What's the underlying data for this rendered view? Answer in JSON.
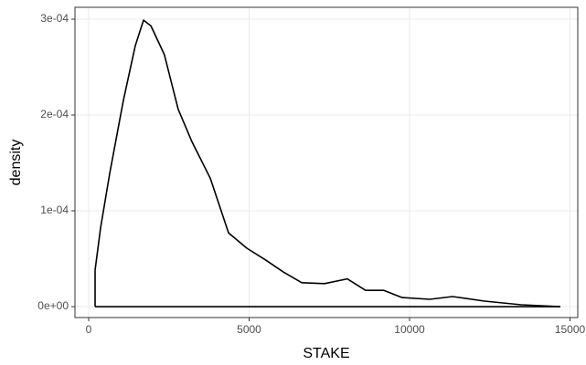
{
  "chart_data": {
    "type": "density",
    "x_label": "STAKE",
    "y_label": "density",
    "x": [
      200,
      370,
      655,
      1080,
      1450,
      1710,
      1940,
      2360,
      2790,
      3220,
      3790,
      4360,
      4930,
      5500,
      6070,
      6640,
      7350,
      8060,
      8630,
      9200,
      9770,
      10630,
      11340,
      12340,
      13480,
      14700
    ],
    "values": [
      3.8e-05,
      8.2e-05,
      0.000139,
      0.000215,
      0.000272,
      0.000299,
      0.000293,
      0.000263,
      0.000206,
      0.000172,
      0.000134,
      7.7e-05,
      6.1e-05,
      4.9e-05,
      3.6e-05,
      2.5e-05,
      2.4e-05,
      2.9e-05,
      1.7e-05,
      1.7e-05,
      9.5e-06,
      7.6e-06,
      1.05e-05,
      5.7e-06,
      1.9e-06,
      0
    ],
    "color": "#000000",
    "xlim": [
      -427,
      15242
    ],
    "ylim": [
      -1.14e-05,
      0.0003124
    ],
    "xticks": [
      0,
      5000,
      10000,
      15000
    ],
    "yticks": [
      {
        "value": 0,
        "label": "0e+00"
      },
      {
        "value": 0.0001,
        "label": "1e-04"
      },
      {
        "value": 0.0002,
        "label": "2e-04"
      },
      {
        "value": 0.0003,
        "label": "3e-04"
      }
    ],
    "grid": true
  }
}
